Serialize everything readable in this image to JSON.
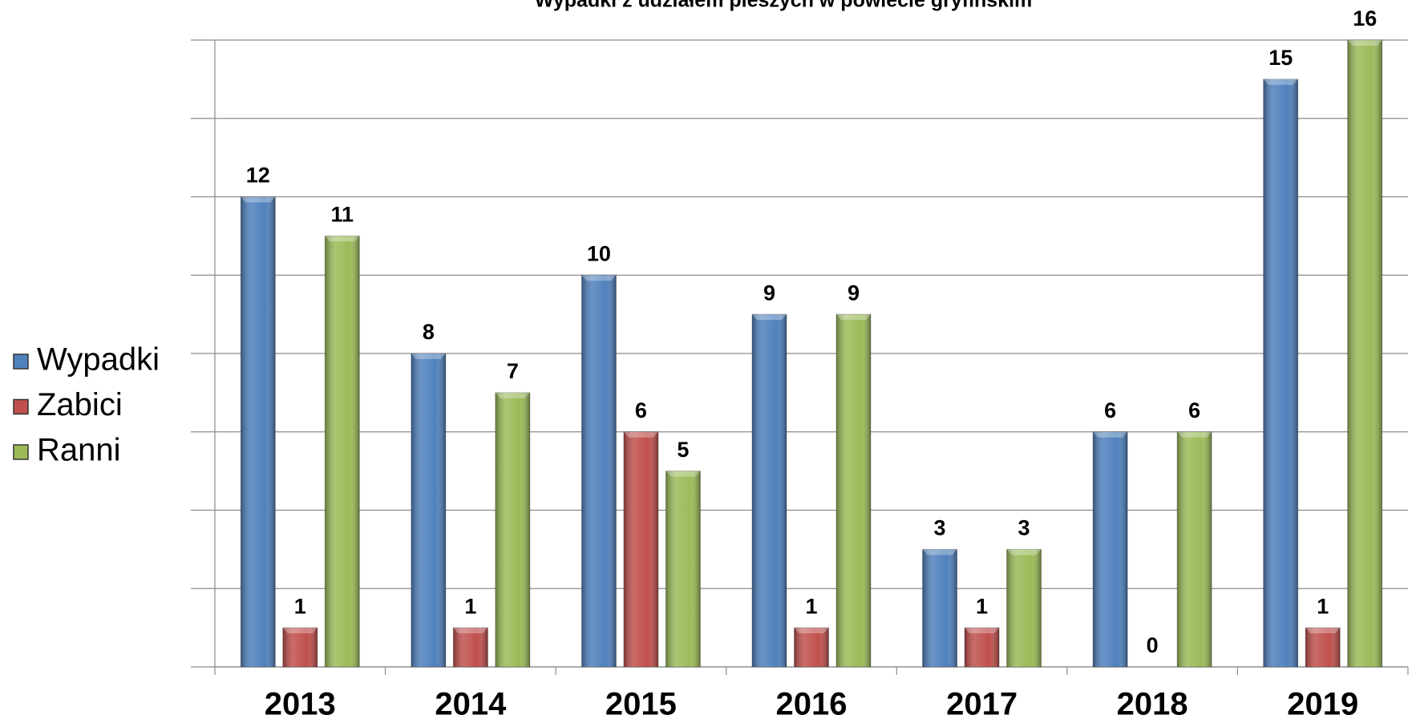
{
  "chart_data": {
    "type": "bar",
    "title": "Wypadki z udziałem pieszych w powiecie gryfińskim",
    "categories": [
      "2013",
      "2014",
      "2015",
      "2016",
      "2017",
      "2018",
      "2019"
    ],
    "series": [
      {
        "name": "Wypadki",
        "color": "#4f81bd",
        "values": [
          12,
          8,
          10,
          9,
          3,
          6,
          15
        ]
      },
      {
        "name": "Zabici",
        "color": "#c0504d",
        "values": [
          1,
          1,
          6,
          1,
          1,
          0,
          1
        ]
      },
      {
        "name": "Ranni",
        "color": "#9bbb59",
        "values": [
          11,
          7,
          5,
          9,
          3,
          6,
          16
        ]
      }
    ],
    "ylim": [
      0,
      16
    ],
    "yticks": [
      0,
      2,
      4,
      6,
      8,
      10,
      12,
      14,
      16
    ],
    "grid": true,
    "legend": "left"
  }
}
